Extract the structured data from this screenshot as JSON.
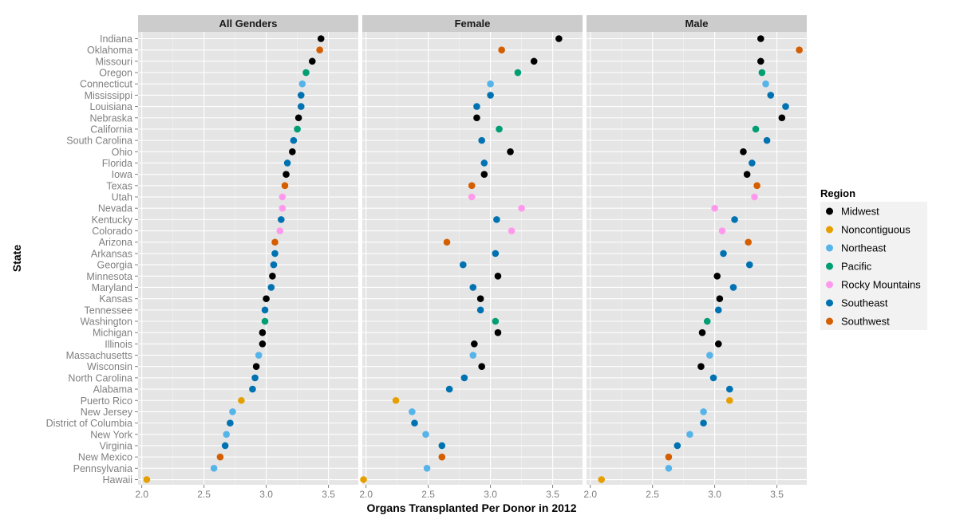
{
  "chart_data": {
    "type": "scatter",
    "xlabel": "Organs Transplanted Per Donor in 2012",
    "ylabel": "State",
    "panels": [
      "All Genders",
      "Female",
      "Male"
    ],
    "x_ticks": [
      "2.0",
      "2.5",
      "3.0",
      "3.5"
    ],
    "x_tick_values": [
      2.0,
      2.5,
      3.0,
      3.5
    ],
    "xlim": [
      1.97,
      3.74
    ],
    "grid": true,
    "legend": {
      "title": "Region",
      "position": "right",
      "entries": [
        {
          "name": "Midwest",
          "color": "#000000"
        },
        {
          "name": "Noncontiguous",
          "color": "#E69F00"
        },
        {
          "name": "Northeast",
          "color": "#56B4E9"
        },
        {
          "name": "Pacific",
          "color": "#009E73"
        },
        {
          "name": "Rocky Mountains",
          "color": "#FF99EE"
        },
        {
          "name": "Southeast",
          "color": "#0072B2"
        },
        {
          "name": "Southwest",
          "color": "#D55E00"
        }
      ]
    },
    "states": [
      {
        "state": "Indiana",
        "region": "Midwest",
        "all": 3.44,
        "female": 3.55,
        "male": 3.37
      },
      {
        "state": "Oklahoma",
        "region": "Southwest",
        "all": 3.43,
        "female": 3.09,
        "male": 3.68
      },
      {
        "state": "Missouri",
        "region": "Midwest",
        "all": 3.37,
        "female": 3.35,
        "male": 3.37
      },
      {
        "state": "Oregon",
        "region": "Pacific",
        "all": 3.32,
        "female": 3.22,
        "male": 3.38
      },
      {
        "state": "Connecticut",
        "region": "Northeast",
        "all": 3.29,
        "female": 3.0,
        "male": 3.41
      },
      {
        "state": "Mississippi",
        "region": "Southeast",
        "all": 3.28,
        "female": 3.0,
        "male": 3.45
      },
      {
        "state": "Louisiana",
        "region": "Southeast",
        "all": 3.28,
        "female": 2.89,
        "male": 3.57
      },
      {
        "state": "Nebraska",
        "region": "Midwest",
        "all": 3.26,
        "female": 2.89,
        "male": 3.54
      },
      {
        "state": "California",
        "region": "Pacific",
        "all": 3.25,
        "female": 3.07,
        "male": 3.33
      },
      {
        "state": "South Carolina",
        "region": "Southeast",
        "all": 3.22,
        "female": 2.93,
        "male": 3.42
      },
      {
        "state": "Ohio",
        "region": "Midwest",
        "all": 3.21,
        "female": 3.16,
        "male": 3.23
      },
      {
        "state": "Florida",
        "region": "Southeast",
        "all": 3.17,
        "female": 2.95,
        "male": 3.3
      },
      {
        "state": "Iowa",
        "region": "Midwest",
        "all": 3.16,
        "female": 2.95,
        "male": 3.26
      },
      {
        "state": "Texas",
        "region": "Southwest",
        "all": 3.15,
        "female": 2.85,
        "male": 3.34
      },
      {
        "state": "Utah",
        "region": "Rocky Mountains",
        "all": 3.13,
        "female": 2.85,
        "male": 3.32
      },
      {
        "state": "Nevada",
        "region": "Rocky Mountains",
        "all": 3.13,
        "female": 3.25,
        "male": 3.0
      },
      {
        "state": "Kentucky",
        "region": "Southeast",
        "all": 3.12,
        "female": 3.05,
        "male": 3.16
      },
      {
        "state": "Colorado",
        "region": "Rocky Mountains",
        "all": 3.11,
        "female": 3.17,
        "male": 3.06
      },
      {
        "state": "Arizona",
        "region": "Southwest",
        "all": 3.07,
        "female": 2.65,
        "male": 3.27
      },
      {
        "state": "Arkansas",
        "region": "Southeast",
        "all": 3.07,
        "female": 3.04,
        "male": 3.07
      },
      {
        "state": "Georgia",
        "region": "Southeast",
        "all": 3.06,
        "female": 2.78,
        "male": 3.28
      },
      {
        "state": "Minnesota",
        "region": "Midwest",
        "all": 3.05,
        "female": 3.06,
        "male": 3.02
      },
      {
        "state": "Maryland",
        "region": "Southeast",
        "all": 3.04,
        "female": 2.86,
        "male": 3.15
      },
      {
        "state": "Kansas",
        "region": "Midwest",
        "all": 3.0,
        "female": 2.92,
        "male": 3.04
      },
      {
        "state": "Tennessee",
        "region": "Southeast",
        "all": 2.99,
        "female": 2.92,
        "male": 3.03
      },
      {
        "state": "Washington",
        "region": "Pacific",
        "all": 2.99,
        "female": 3.04,
        "male": 2.94
      },
      {
        "state": "Michigan",
        "region": "Midwest",
        "all": 2.97,
        "female": 3.06,
        "male": 2.9
      },
      {
        "state": "Illinois",
        "region": "Midwest",
        "all": 2.97,
        "female": 2.87,
        "male": 3.03
      },
      {
        "state": "Massachusetts",
        "region": "Northeast",
        "all": 2.94,
        "female": 2.86,
        "male": 2.96
      },
      {
        "state": "Wisconsin",
        "region": "Midwest",
        "all": 2.92,
        "female": 2.93,
        "male": 2.89
      },
      {
        "state": "North Carolina",
        "region": "Southeast",
        "all": 2.91,
        "female": 2.79,
        "male": 2.99
      },
      {
        "state": "Alabama",
        "region": "Southeast",
        "all": 2.89,
        "female": 2.67,
        "male": 3.12
      },
      {
        "state": "Puerto Rico",
        "region": "Noncontiguous",
        "all": 2.8,
        "female": 2.24,
        "male": 3.12
      },
      {
        "state": "New Jersey",
        "region": "Northeast",
        "all": 2.73,
        "female": 2.37,
        "male": 2.91
      },
      {
        "state": "District of Columbia",
        "region": "Southeast",
        "all": 2.71,
        "female": 2.39,
        "male": 2.91
      },
      {
        "state": "New York",
        "region": "Northeast",
        "all": 2.68,
        "female": 2.48,
        "male": 2.8
      },
      {
        "state": "Virginia",
        "region": "Southeast",
        "all": 2.67,
        "female": 2.61,
        "male": 2.7
      },
      {
        "state": "New Mexico",
        "region": "Southwest",
        "all": 2.63,
        "female": 2.61,
        "male": 2.63
      },
      {
        "state": "Pennsylvania",
        "region": "Northeast",
        "all": 2.58,
        "female": 2.49,
        "male": 2.63
      },
      {
        "state": "Hawaii",
        "region": "Noncontiguous",
        "all": 2.04,
        "female": 1.98,
        "male": 2.09
      }
    ]
  }
}
